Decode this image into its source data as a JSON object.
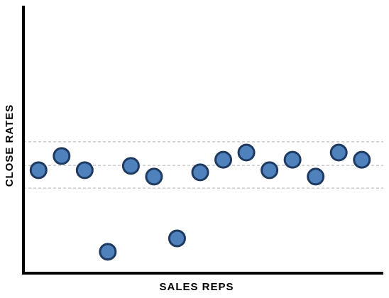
{
  "chart_data": {
    "type": "scatter",
    "x_label": "SALES REPS",
    "y_label": "CLOSE RATES",
    "categories": [
      null,
      null,
      null,
      null,
      null,
      null,
      null,
      null,
      null,
      null,
      null,
      null,
      null,
      null,
      null
    ],
    "values": [
      38.5,
      43.8,
      38.5,
      8.0,
      40.1,
      36.1,
      13.0,
      37.7,
      42.4,
      45.1,
      38.5,
      42.4,
      36.1,
      45.1,
      42.4
    ],
    "color": "#4f81bd",
    "ylim": [
      0,
      100
    ],
    "reference_lines": [
      49.1,
      40.3,
      31.8
    ]
  }
}
